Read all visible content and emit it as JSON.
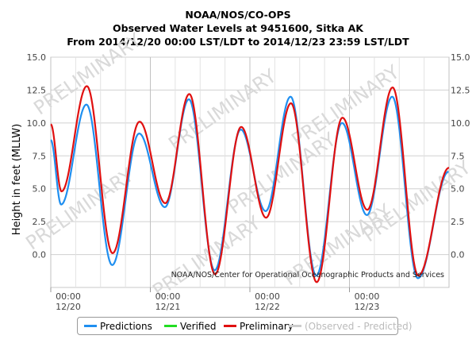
{
  "titles": {
    "line1": "NOAA/NOS/CO-OPS",
    "line2": "Observed Water Levels at 9451600, Sitka AK",
    "line3": "From 2014/12/20 00:00 LST/LDT to 2014/12/23 23:59 LST/LDT"
  },
  "watermark": "PRELIMINARY",
  "credit": "NOAA/NOS/Center for Operational Oceanographic Products and Services",
  "legend": [
    {
      "label": "Predictions",
      "color": "#1f8ff0"
    },
    {
      "label": "Verified",
      "color": "#22dd22"
    },
    {
      "label": "Preliminary",
      "color": "#e01010"
    },
    {
      "label": "(Observed - Predicted)",
      "color": "#cccccc"
    }
  ],
  "chart_data": {
    "type": "line",
    "title": "NOAA/NOS/CO-OPS Observed Water Levels at 9451600, Sitka AK",
    "xlabel": "",
    "ylabel": "Height in feet (MLLW)",
    "ylim": [
      -2.5,
      15.0
    ],
    "xlim_hours": [
      0,
      96
    ],
    "x_ticks": [
      {
        "hour": 0,
        "time": "00:00",
        "date": "12/20"
      },
      {
        "hour": 24,
        "time": "00:00",
        "date": "12/21"
      },
      {
        "hour": 48,
        "time": "00:00",
        "date": "12/22"
      },
      {
        "hour": 72,
        "time": "00:00",
        "date": "12/23"
      }
    ],
    "y_ticks": [
      "0.0",
      "2.5",
      "5.0",
      "7.5",
      "10.0",
      "12.5",
      "15.0"
    ],
    "series": [
      {
        "name": "Predictions",
        "color": "#1f8ff0",
        "extrema": [
          [
            0,
            8.7
          ],
          [
            2.5,
            3.8
          ],
          [
            8.6,
            11.4
          ],
          [
            14.8,
            -0.8
          ],
          [
            21.3,
            9.2
          ],
          [
            27.5,
            3.6
          ],
          [
            33.3,
            11.8
          ],
          [
            39.5,
            -1.2
          ],
          [
            45.8,
            9.5
          ],
          [
            51.8,
            3.3
          ],
          [
            57.8,
            12.0
          ],
          [
            64.0,
            -1.6
          ],
          [
            70.2,
            10.0
          ],
          [
            76.2,
            3.0
          ],
          [
            82.3,
            12.0
          ],
          [
            88.5,
            -1.8
          ],
          [
            95.9,
            6.3
          ]
        ]
      },
      {
        "name": "Preliminary",
        "color": "#e01010",
        "extrema": [
          [
            0,
            9.9
          ],
          [
            2.6,
            4.8
          ],
          [
            8.7,
            12.8
          ],
          [
            14.9,
            0.1
          ],
          [
            21.4,
            10.1
          ],
          [
            27.6,
            3.9
          ],
          [
            33.4,
            12.2
          ],
          [
            39.6,
            -1.5
          ],
          [
            45.9,
            9.7
          ],
          [
            51.9,
            2.8
          ],
          [
            57.9,
            11.5
          ],
          [
            64.1,
            -2.1
          ],
          [
            70.3,
            10.4
          ],
          [
            76.3,
            3.4
          ],
          [
            82.4,
            12.7
          ],
          [
            88.6,
            -1.6
          ],
          [
            96.0,
            6.6
          ]
        ]
      }
    ],
    "grid": true,
    "legend_position": "bottom"
  }
}
